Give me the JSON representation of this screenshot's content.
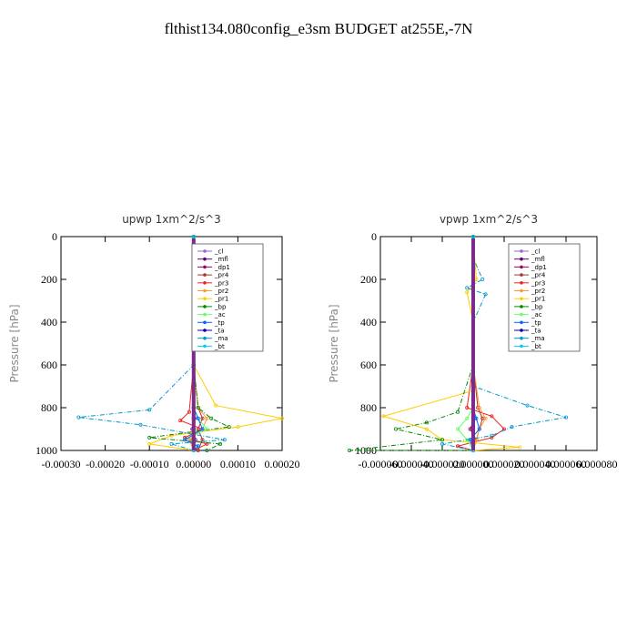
{
  "figure_title": "flthist134.080config_e3sm  BUDGET at255E,-7N",
  "chart_data": [
    {
      "type": "line",
      "title": "upwp   1xm^2/s^3",
      "ylabel": "Pressure [hPa]",
      "xlim": [
        -0.0003,
        0.0002
      ],
      "ylim": [
        1000,
        0
      ],
      "xticks": [
        -0.0003,
        -0.0002,
        -0.0001,
        0.0,
        0.0001,
        0.0002
      ],
      "xtick_labels": [
        "-0.00030",
        "-0.00020",
        "-0.00010",
        "0.00000",
        "0.00010",
        "0.00020"
      ],
      "yticks": [
        0,
        200,
        400,
        600,
        800,
        1000
      ],
      "ytick_labels": [
        "0",
        "200",
        "400",
        "600",
        "800",
        "1000"
      ],
      "legend": "top-right",
      "series": [
        {
          "name": "_cl",
          "color": "#9966cc",
          "x": [
            0,
            0,
            0,
            0,
            0,
            0,
            0,
            0,
            0
          ],
          "y": [
            0,
            200,
            400,
            600,
            800,
            850,
            900,
            950,
            1000
          ]
        },
        {
          "name": "_mfl",
          "color": "#660066",
          "x": [
            0,
            0,
            0,
            0,
            0,
            0,
            0,
            0,
            0
          ],
          "y": [
            0,
            200,
            400,
            600,
            800,
            850,
            900,
            950,
            1000
          ]
        },
        {
          "name": "_dp1",
          "color": "#990066",
          "x": [
            0,
            0,
            0,
            0,
            0,
            2e-06,
            -3e-06,
            4e-06,
            0
          ],
          "y": [
            0,
            200,
            400,
            600,
            800,
            850,
            900,
            950,
            1000
          ]
        },
        {
          "name": "_pr4",
          "color": "#aa3333",
          "x": [
            0,
            0,
            0,
            0,
            1e-05,
            2e-05,
            1e-05,
            2e-05,
            1e-05
          ],
          "y": [
            0,
            200,
            400,
            600,
            800,
            850,
            900,
            950,
            1000
          ]
        },
        {
          "name": "_pr3",
          "color": "#ee2222",
          "x": [
            0,
            0,
            0,
            0,
            -1e-05,
            -3e-05,
            2e-05,
            -2e-05,
            3e-05,
            0
          ],
          "y": [
            0,
            200,
            400,
            600,
            820,
            860,
            900,
            940,
            970,
            1000
          ]
        },
        {
          "name": "_pr2",
          "color": "#ff9933",
          "x": [
            0,
            0,
            0,
            0,
            1e-05,
            3e-05,
            2e-05,
            -1e-05,
            0
          ],
          "y": [
            0,
            200,
            400,
            600,
            800,
            850,
            900,
            950,
            1000
          ]
        },
        {
          "name": "_pr1",
          "color": "#ffcc00",
          "x": [
            0,
            0,
            0,
            0,
            5e-05,
            0.0002,
            0.0001,
            -5e-05,
            -0.0001,
            0
          ],
          "y": [
            0,
            200,
            400,
            600,
            790,
            850,
            890,
            930,
            970,
            1000
          ]
        },
        {
          "name": "_bp",
          "color": "#008800",
          "x": [
            0,
            0,
            0,
            0,
            1e-05,
            4e-05,
            8e-05,
            -0.0001,
            6e-05,
            3e-05
          ],
          "y": [
            0,
            200,
            400,
            600,
            800,
            850,
            890,
            940,
            970,
            1000
          ]
        },
        {
          "name": "_ac",
          "color": "#66ff66",
          "x": [
            0,
            0,
            0,
            0,
            0,
            1e-05,
            3e-05,
            -2e-05,
            1e-05,
            0
          ],
          "y": [
            0,
            200,
            400,
            600,
            800,
            850,
            900,
            950,
            980,
            1000
          ]
        },
        {
          "name": "_tp",
          "color": "#0066ff",
          "x": [
            0,
            0,
            0,
            0,
            0,
            1e-05,
            2e-05,
            -2e-05,
            1e-05,
            0
          ],
          "y": [
            0,
            200,
            400,
            600,
            800,
            850,
            900,
            950,
            980,
            1000
          ]
        },
        {
          "name": "_ta",
          "color": "#000099",
          "x": [
            0,
            0,
            0,
            0,
            0,
            0,
            0,
            0,
            0
          ],
          "y": [
            0,
            200,
            400,
            600,
            800,
            850,
            900,
            950,
            1000
          ]
        },
        {
          "name": "_ma",
          "color": "#0099cc",
          "x": [
            0,
            0,
            0,
            0,
            -0.0001,
            -0.00026,
            -0.00012,
            7e-05,
            -5e-05,
            0
          ],
          "y": [
            0,
            200,
            400,
            600,
            810,
            845,
            880,
            950,
            970,
            1000
          ]
        },
        {
          "name": "_bt",
          "color": "#00ccff",
          "x": [
            0,
            0,
            0,
            0,
            0,
            0,
            0,
            0,
            0
          ],
          "y": [
            0,
            200,
            400,
            600,
            800,
            850,
            900,
            950,
            1000
          ]
        }
      ]
    },
    {
      "type": "line",
      "title": "vpwp   1xm^2/s^3",
      "ylabel": "Pressure [hPa]",
      "xlim": [
        -6e-05,
        8e-05
      ],
      "ylim": [
        1000,
        0
      ],
      "xticks": [
        -6e-05,
        -4e-05,
        -2e-05,
        0.0,
        2e-05,
        4e-05,
        6e-05,
        8e-05
      ],
      "xtick_labels": [
        "-0.000060",
        "-0.000040",
        "-0.000020",
        "0.000000",
        "0.000020",
        "0.000040",
        "0.000060",
        "0.000080"
      ],
      "yticks": [
        0,
        200,
        400,
        600,
        800,
        1000
      ],
      "ytick_labels": [
        "0",
        "200",
        "400",
        "600",
        "800",
        "1000"
      ],
      "legend": "top-right",
      "series": [
        {
          "name": "_cl",
          "color": "#9966cc",
          "x": [
            0,
            0,
            0,
            0,
            0,
            0,
            0,
            0,
            0
          ],
          "y": [
            0,
            200,
            400,
            600,
            800,
            850,
            900,
            950,
            1000
          ]
        },
        {
          "name": "_mfl",
          "color": "#660066",
          "x": [
            0,
            0,
            0,
            0,
            0,
            0,
            0,
            0,
            0
          ],
          "y": [
            0,
            200,
            400,
            600,
            800,
            850,
            900,
            950,
            1000
          ]
        },
        {
          "name": "_dp1",
          "color": "#990066",
          "x": [
            0,
            0,
            0,
            0,
            0,
            1e-06,
            -2e-06,
            2e-06,
            0
          ],
          "y": [
            0,
            200,
            400,
            600,
            800,
            850,
            900,
            950,
            1000
          ]
        },
        {
          "name": "_pr4",
          "color": "#aa3333",
          "x": [
            0,
            0,
            0,
            0,
            3e-06,
            6e-06,
            4e-06,
            2e-06,
            0
          ],
          "y": [
            0,
            200,
            400,
            600,
            800,
            850,
            900,
            950,
            1000
          ]
        },
        {
          "name": "_pr3",
          "color": "#ee2222",
          "x": [
            0,
            0,
            0,
            0,
            -4e-06,
            1.2e-05,
            2e-05,
            1.2e-05,
            -1e-05,
            0
          ],
          "y": [
            0,
            200,
            400,
            600,
            800,
            840,
            900,
            940,
            980,
            1000
          ]
        },
        {
          "name": "_pr2",
          "color": "#ff9933",
          "x": [
            0,
            0,
            0,
            0,
            4e-06,
            8e-06,
            4e-06,
            2e-06,
            0
          ],
          "y": [
            0,
            200,
            400,
            600,
            800,
            850,
            900,
            950,
            1000
          ]
        },
        {
          "name": "_pr1",
          "color": "#ffcc00",
          "x": [
            0,
            2e-06,
            -4e-06,
            0,
            0,
            -5.8e-05,
            -3e-05,
            -2e-05,
            3e-05,
            0
          ],
          "y": [
            0,
            200,
            260,
            400,
            720,
            840,
            900,
            950,
            985,
            1000
          ]
        },
        {
          "name": "_bp",
          "color": "#008800",
          "x": [
            0,
            0,
            0,
            0,
            -1e-05,
            -3e-05,
            -5e-05,
            -2e-05,
            -8e-05,
            0
          ],
          "y": [
            0,
            200,
            400,
            600,
            820,
            870,
            900,
            950,
            1000,
            1000
          ]
        },
        {
          "name": "_ac",
          "color": "#66ff66",
          "x": [
            0,
            0,
            0,
            0,
            0,
            -4e-06,
            -1e-05,
            -4e-06,
            0
          ],
          "y": [
            0,
            200,
            400,
            600,
            800,
            850,
            900,
            950,
            1000
          ]
        },
        {
          "name": "_tp",
          "color": "#0066ff",
          "x": [
            0,
            0,
            0,
            0,
            0,
            2e-06,
            4e-06,
            -2e-06,
            0
          ],
          "y": [
            0,
            200,
            400,
            600,
            800,
            850,
            900,
            950,
            1000
          ]
        },
        {
          "name": "_ta",
          "color": "#000099",
          "x": [
            0,
            0,
            0,
            0,
            0,
            0,
            0,
            0,
            0
          ],
          "y": [
            0,
            200,
            400,
            600,
            800,
            850,
            900,
            950,
            1000
          ]
        },
        {
          "name": "_ma",
          "color": "#0099cc",
          "x": [
            0,
            0,
            6e-06,
            -4e-06,
            8e-06,
            0,
            0,
            3.5e-05,
            6e-05,
            2.5e-05,
            1.2e-05,
            -2e-05,
            0
          ],
          "y": [
            0,
            100,
            200,
            240,
            270,
            400,
            700,
            790,
            845,
            890,
            930,
            970,
            1000
          ]
        },
        {
          "name": "_bt",
          "color": "#00ccff",
          "x": [
            0,
            0,
            0,
            0,
            0,
            0,
            0,
            0,
            0
          ],
          "y": [
            0,
            200,
            400,
            600,
            800,
            850,
            900,
            950,
            1000
          ]
        }
      ]
    }
  ]
}
